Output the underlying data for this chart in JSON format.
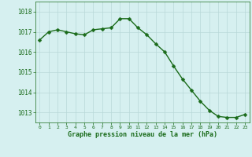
{
  "x": [
    0,
    1,
    2,
    3,
    4,
    5,
    6,
    7,
    8,
    9,
    10,
    11,
    12,
    13,
    14,
    15,
    16,
    17,
    18,
    19,
    20,
    21,
    22,
    23
  ],
  "y": [
    1016.6,
    1017.0,
    1017.1,
    1017.0,
    1016.9,
    1016.85,
    1017.1,
    1017.15,
    1017.2,
    1017.65,
    1017.65,
    1017.2,
    1016.85,
    1016.4,
    1016.0,
    1015.3,
    1014.65,
    1014.1,
    1013.55,
    1013.1,
    1012.8,
    1012.75,
    1012.75,
    1012.9
  ],
  "line_color": "#1a6b1a",
  "marker_color": "#1a6b1a",
  "bg_color": "#d6f0f0",
  "grid_color": "#b8d8d8",
  "xlabel": "Graphe pression niveau de la mer (hPa)",
  "xlabel_color": "#1a6b1a",
  "tick_color": "#1a6b1a",
  "ylim": [
    1012.5,
    1018.5
  ],
  "xlim": [
    -0.5,
    23.5
  ],
  "yticks": [
    1013,
    1014,
    1015,
    1016,
    1017,
    1018
  ],
  "xtick_labels": [
    "0",
    "1",
    "2",
    "3",
    "4",
    "5",
    "6",
    "7",
    "8",
    "9",
    "10",
    "11",
    "12",
    "13",
    "14",
    "15",
    "16",
    "17",
    "18",
    "19",
    "20",
    "21",
    "22",
    "23"
  ],
  "marker_size": 2.5,
  "line_width": 1.0
}
